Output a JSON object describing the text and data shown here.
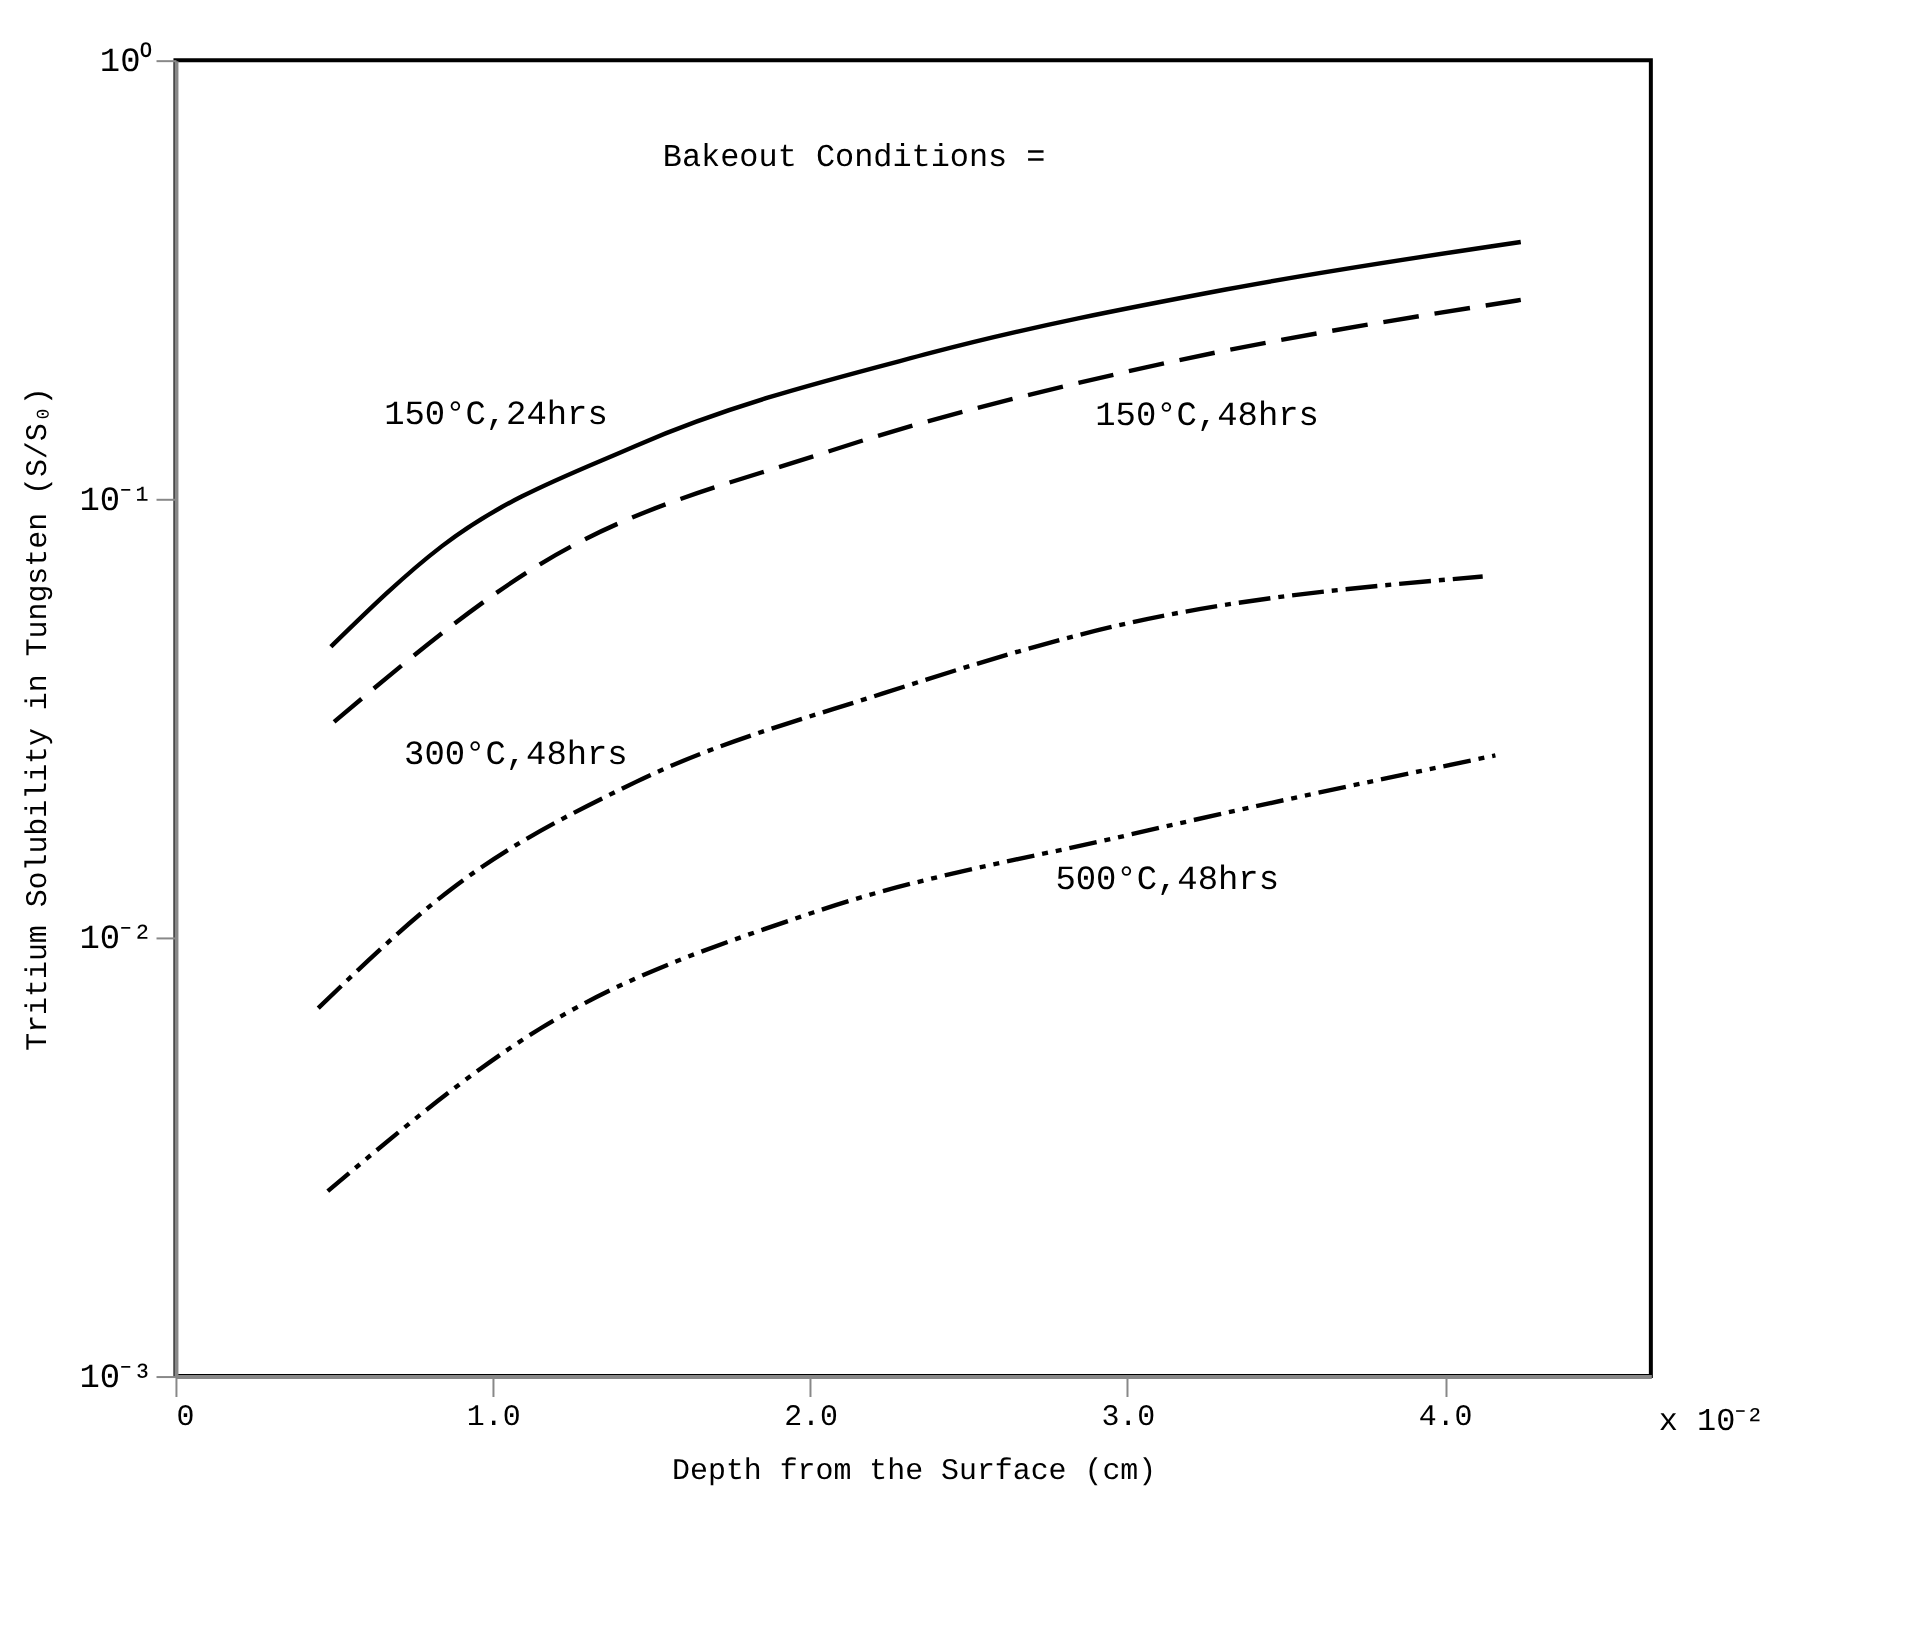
{
  "chart_data": {
    "type": "line",
    "xlabel": "Depth from the Surface    (cm)",
    "ylabel": "Tritium Solubility in Tungsten (S/S₀)",
    "log": "y",
    "grid": false,
    "marker": "none",
    "xlim": [
      0,
      4.65
    ],
    "xticks": [
      {
        "value": 0,
        "label": "0"
      },
      {
        "value": 1,
        "label": "1.0"
      },
      {
        "value": 2,
        "label": "2.0"
      },
      {
        "value": 3,
        "label": "3.0"
      },
      {
        "value": 4,
        "label": "4.0"
      }
    ],
    "ylim": [
      0.001,
      1
    ],
    "yticks": [
      {
        "value": 0.001,
        "label": "10⁻³"
      },
      {
        "value": 0.01,
        "label": "10⁻²"
      },
      {
        "value": 0.1,
        "label": "10⁻¹"
      },
      {
        "value": 1,
        "label": "10⁰"
      }
    ],
    "annotations": [
      "Bakeout Conditions =",
      "x 10⁻²"
    ],
    "series": [
      {
        "name": "150°C,24hrs",
        "color": "#000000",
        "line_style": "solid",
        "x": [
          0.49,
          0.84,
          1.45,
          2.38,
          3.31,
          4.24
        ],
        "values": [
          0.046,
          0.078,
          0.132,
          0.215,
          0.3,
          0.385
        ]
      },
      {
        "name": "150°C,48hrs",
        "color": "#000000",
        "line_style": "dashed",
        "x": [
          0.5,
          1.15,
          2.07,
          3.0,
          4.24
        ],
        "values": [
          0.031,
          0.071,
          0.129,
          0.195,
          0.284
        ]
      },
      {
        "name": "300°C,48hrs",
        "color": "#000000",
        "line_style": "dashdot",
        "x": [
          0.45,
          0.87,
          1.45,
          2.23,
          3.0,
          4.12
        ],
        "values": [
          0.0069,
          0.0129,
          0.0226,
          0.036,
          0.052,
          0.0665
        ]
      },
      {
        "name": "500°C,48hrs",
        "color": "#000000",
        "line_style": "dashdotdot",
        "x": [
          0.48,
          1.15,
          2.01,
          3.0,
          4.16
        ],
        "values": [
          0.00264,
          0.0062,
          0.0114,
          0.0171,
          0.026
        ]
      }
    ]
  }
}
